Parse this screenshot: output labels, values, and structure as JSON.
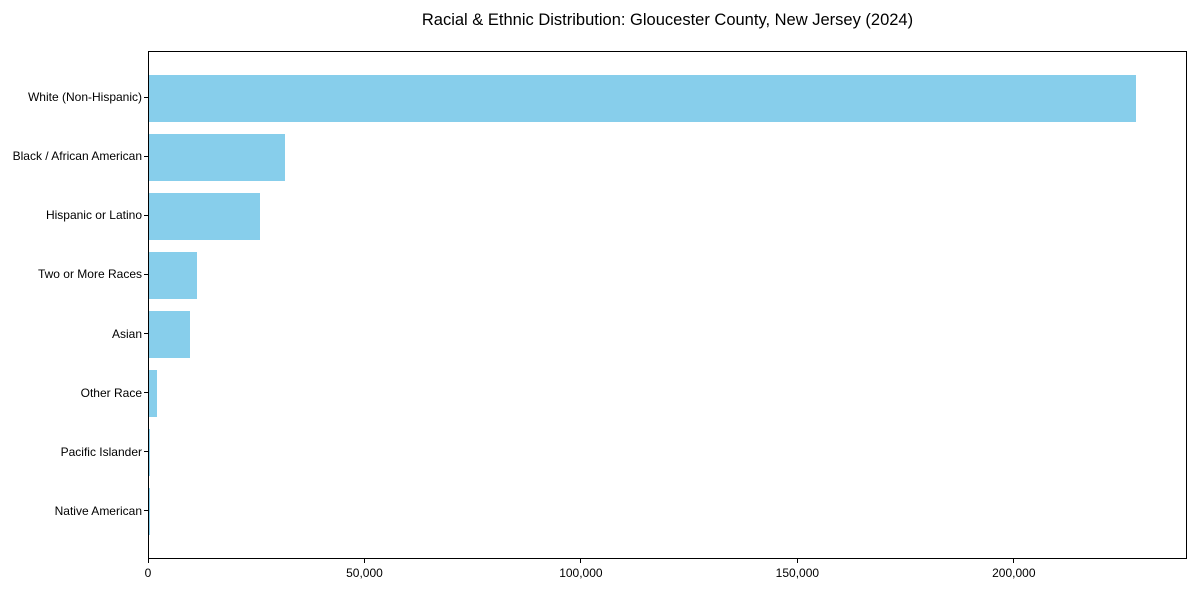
{
  "title": "Racial & Ethnic Distribution: Gloucester County, New Jersey (2024)",
  "colors": {
    "bar": "#87CEEB",
    "axis": "#000000",
    "background": "#ffffff",
    "text": "#000000"
  },
  "chart_data": {
    "type": "bar",
    "orientation": "horizontal",
    "title": "Racial & Ethnic Distribution: Gloucester County, New Jersey (2024)",
    "categories": [
      "White (Non-Hispanic)",
      "Black / African American",
      "Hispanic or Latino",
      "Two or More Races",
      "Asian",
      "Other Race",
      "Pacific Islander",
      "Native American"
    ],
    "values": [
      228500,
      31400,
      25700,
      11100,
      9500,
      1900,
      200,
      100
    ],
    "xlabel": "",
    "ylabel": "",
    "xlim": [
      0,
      240000
    ],
    "xticks": [
      0,
      50000,
      100000,
      150000,
      200000
    ],
    "xtick_labels": [
      "0",
      "50,000",
      "100,000",
      "150,000",
      "200,000"
    ],
    "grid": false,
    "legend": null,
    "bar_color": "#87CEEB",
    "sort_order": "descending"
  }
}
